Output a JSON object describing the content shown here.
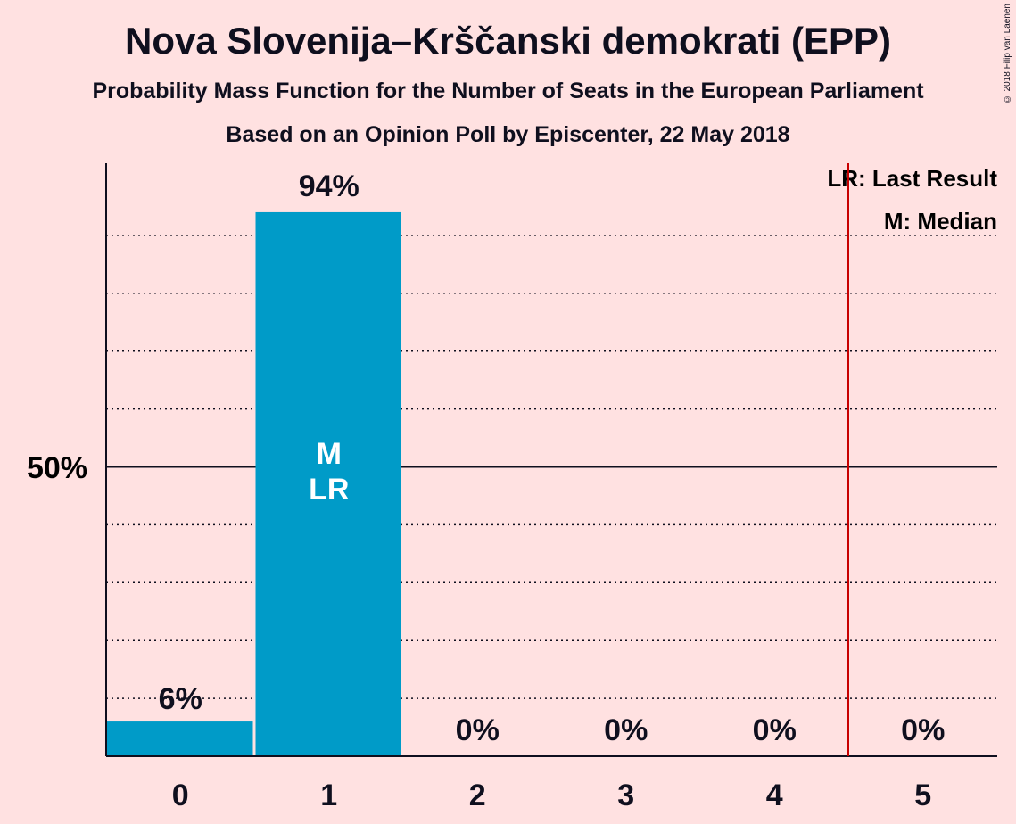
{
  "header": {
    "title": "Nova Slovenija–Krščanski demokrati (EPP)",
    "subtitle": "Probability Mass Function for the Number of Seats in the European Parliament",
    "subtitle2": "Based on an Opinion Poll by Episcenter, 22 May 2018",
    "copyright": "© 2018 Filip van Laenen"
  },
  "legend": {
    "last_result": "LR: Last Result",
    "median": "M: Median"
  },
  "colors": {
    "background": "#FFE1E1",
    "bar": "#009BC8",
    "last_result_line": "#C80000",
    "text": "#0F0F1E"
  },
  "chart_data": {
    "type": "bar",
    "categories": [
      "0",
      "1",
      "2",
      "3",
      "4",
      "5"
    ],
    "values": [
      6,
      94,
      0,
      0,
      0,
      0
    ],
    "value_labels": [
      "6%",
      "94%",
      "0%",
      "0%",
      "0%",
      "0%"
    ],
    "ylim": [
      0,
      100
    ],
    "y_tick_label": "50%",
    "y_tick_value": 50,
    "gridlines": [
      10,
      20,
      30,
      40,
      60,
      70,
      80,
      90
    ],
    "median_seats": 1,
    "last_result_seats": 1,
    "bar_markers": [
      "M",
      "LR"
    ],
    "last_result_line_after_category": 4,
    "legend_position": "top-right"
  }
}
